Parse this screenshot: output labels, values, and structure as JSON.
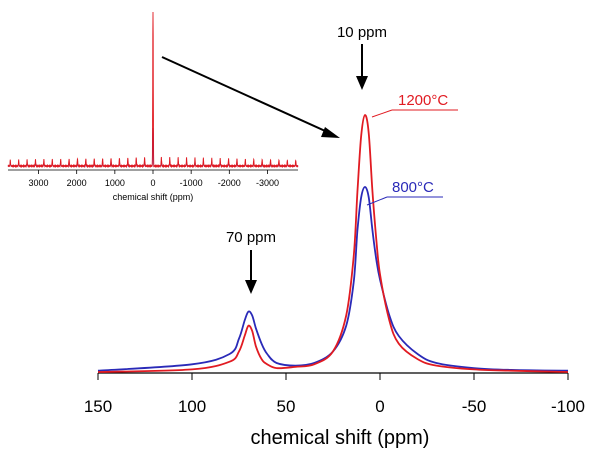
{
  "chart_data": {
    "type": "line",
    "xlabel": "chemical shift (ppm)",
    "ylabel": "",
    "xlim": [
      150,
      -100
    ],
    "xticks": [
      "150",
      "100",
      "50",
      "0",
      "-50",
      "-100"
    ],
    "tick_values": [
      150,
      100,
      50,
      0,
      -50,
      -100
    ],
    "colors": {
      "s1200": "#e11b22",
      "s800": "#2a2ab8",
      "axis": "#000000"
    },
    "series": [
      {
        "name": "1200°C",
        "color": "#e11b22",
        "x": [
          150,
          100,
          80,
          75,
          72,
          70,
          68,
          66,
          63,
          60,
          55,
          45,
          35,
          25,
          18,
          14,
          12,
          10,
          8,
          6,
          4,
          2,
          0,
          -5,
          -10,
          -20,
          -30,
          -50,
          -70,
          -100
        ],
        "y": [
          0,
          0.01,
          0.04,
          0.08,
          0.14,
          0.18,
          0.16,
          0.1,
          0.05,
          0.03,
          0.015,
          0.02,
          0.03,
          0.08,
          0.22,
          0.45,
          0.7,
          0.92,
          1.0,
          0.93,
          0.7,
          0.52,
          0.38,
          0.2,
          0.11,
          0.05,
          0.025,
          0.01,
          0.005,
          0
        ]
      },
      {
        "name": "800°C",
        "color": "#2a2ab8",
        "x": [
          150,
          100,
          80,
          75,
          72,
          70,
          68,
          66,
          63,
          60,
          55,
          45,
          35,
          25,
          18,
          14,
          12,
          10,
          8,
          6,
          4,
          2,
          0,
          -5,
          -10,
          -20,
          -30,
          -50,
          -70,
          -100
        ],
        "y": [
          0.005,
          0.03,
          0.07,
          0.13,
          0.2,
          0.235,
          0.22,
          0.17,
          0.11,
          0.07,
          0.035,
          0.025,
          0.035,
          0.08,
          0.18,
          0.35,
          0.55,
          0.68,
          0.72,
          0.68,
          0.55,
          0.44,
          0.36,
          0.22,
          0.14,
          0.07,
          0.035,
          0.015,
          0.008,
          0.005
        ]
      }
    ],
    "annotations": [
      {
        "text": "10 ppm",
        "x": 10
      },
      {
        "text": "70 ppm",
        "x": 70
      }
    ],
    "legend_labels": {
      "s1200": "1200°C",
      "s800": "800°C"
    },
    "inset": {
      "type": "line",
      "xlabel": "chemical shift (ppm)",
      "xlim": [
        3800,
        -3800
      ],
      "xticks": [
        "3000",
        "2000",
        "1000",
        "0",
        "-1000",
        "-2000",
        "-3000"
      ],
      "tick_values": [
        3000,
        2000,
        1000,
        0,
        -1000,
        -2000,
        -3000
      ],
      "spinning_sideband_spacing": 220,
      "series": [
        {
          "name": "1200°C",
          "color": "#e11b22"
        },
        {
          "name": "800°C",
          "color": "#2a2ab8"
        }
      ]
    }
  }
}
